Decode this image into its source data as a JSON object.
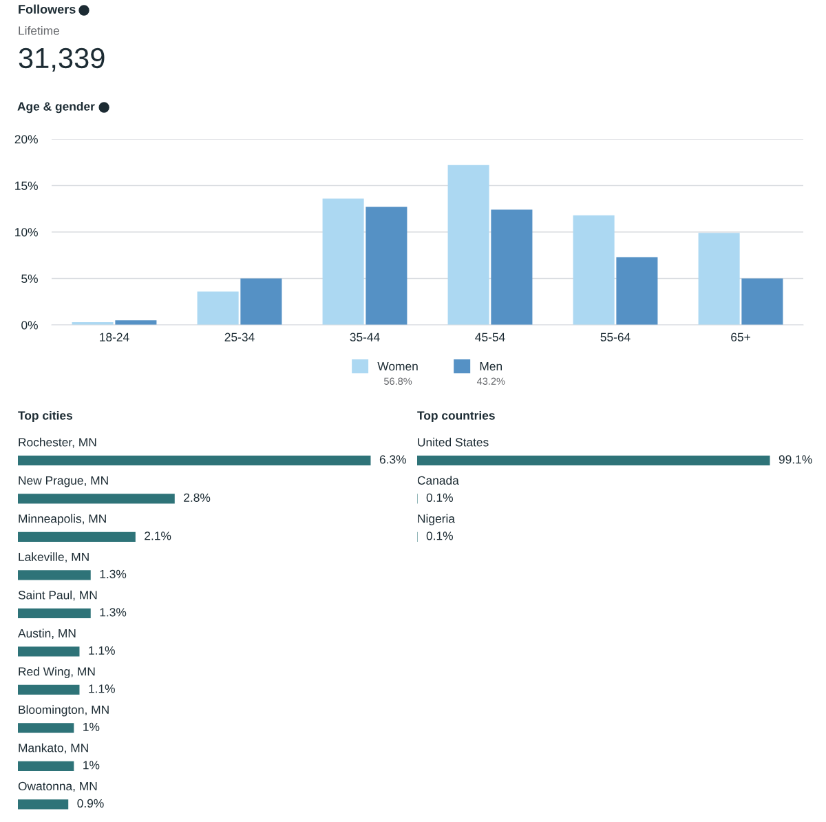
{
  "chart_data": [
    {
      "type": "other",
      "title": "Followers",
      "subtitle": "Lifetime",
      "annotations": [
        "31,339"
      ]
    },
    {
      "type": "bar",
      "title": "Age & gender",
      "categories": [
        "18-24",
        "25-34",
        "35-44",
        "45-54",
        "55-64",
        "65+"
      ],
      "series": [
        {
          "name": "Women",
          "color": "#acd8f2",
          "values": [
            0.3,
            3.6,
            13.6,
            17.2,
            11.8,
            9.9
          ]
        },
        {
          "name": "Men",
          "color": "#5591c5",
          "values": [
            0.5,
            5.0,
            12.7,
            12.4,
            7.3,
            5.0
          ]
        }
      ],
      "ylim": [
        0,
        20
      ],
      "yticks": [
        {
          "value": 0,
          "label": "0%"
        },
        {
          "value": 5,
          "label": "5%"
        },
        {
          "value": 10,
          "label": "10%"
        },
        {
          "value": 15,
          "label": "15%"
        },
        {
          "value": 20,
          "label": "20%"
        }
      ],
      "grid": "y",
      "legend": "bottom",
      "annotations": [
        "56.8%",
        "43.2%"
      ]
    },
    {
      "type": "bar",
      "orientation": "horizontal",
      "title": "Top cities",
      "categories": [
        "Rochester, MN",
        "New Prague, MN",
        "Minneapolis, MN",
        "Lakeville, MN",
        "Saint Paul, MN",
        "Austin, MN",
        "Red Wing, MN",
        "Bloomington, MN",
        "Mankato, MN",
        "Owatonna, MN"
      ],
      "values": [
        6.3,
        2.8,
        2.1,
        1.3,
        1.3,
        1.1,
        1.1,
        1,
        1,
        0.9
      ],
      "color": "#2e7378",
      "value_labels": [
        "6.3%",
        "2.8%",
        "2.1%",
        "1.3%",
        "1.3%",
        "1.1%",
        "1.1%",
        "1%",
        "1%",
        "0.9%"
      ]
    },
    {
      "type": "bar",
      "orientation": "horizontal",
      "title": "Top countries",
      "categories": [
        "United States",
        "Canada",
        "Nigeria"
      ],
      "values": [
        99.1,
        0.1,
        0.1
      ],
      "color": "#2e7378",
      "value_labels": [
        "99.1%",
        "0.1%",
        "0.1%"
      ]
    }
  ]
}
